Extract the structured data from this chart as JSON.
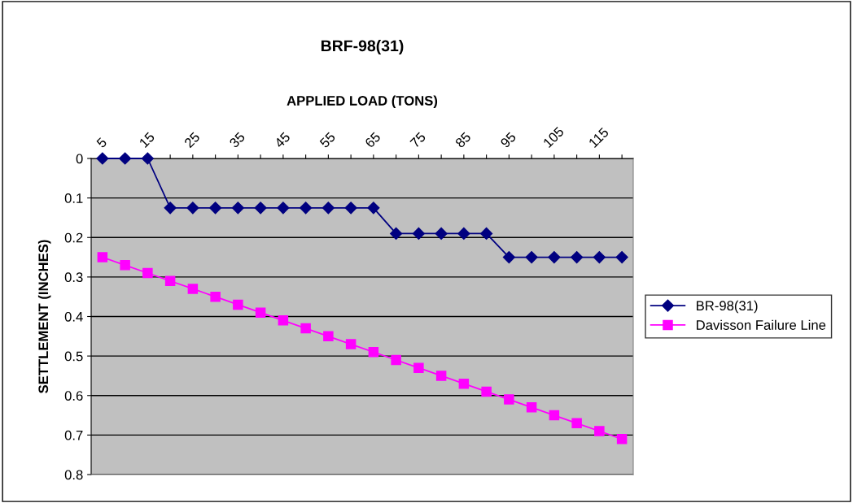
{
  "chart_data": {
    "type": "line",
    "title": "BRF-98(31)",
    "xlabel": "APPLIED LOAD (TONS)",
    "ylabel": "SETTLEMENT (INCHES)",
    "categories": [
      "5",
      null,
      "15",
      null,
      "25",
      null,
      "35",
      null,
      "45",
      null,
      "55",
      null,
      "65",
      null,
      "75",
      null,
      "85",
      null,
      "95",
      null,
      "105",
      null,
      "115",
      null
    ],
    "series": [
      {
        "name": "BR-98(31)",
        "color": "#000080",
        "marker": "diamond",
        "values": [
          0,
          0,
          0,
          0.125,
          0.125,
          0.125,
          0.125,
          0.125,
          0.125,
          0.125,
          0.125,
          0.125,
          0.125,
          0.19,
          0.19,
          0.19,
          0.19,
          0.19,
          0.25,
          0.25,
          0.25,
          0.25,
          0.25,
          0.25
        ]
      },
      {
        "name": "Davisson Failure Line",
        "color": "#ff00ff",
        "marker": "square",
        "values": [
          0.25,
          0.27,
          0.29,
          0.31,
          0.33,
          0.35,
          0.37,
          0.39,
          0.41,
          0.43,
          0.45,
          0.47,
          0.49,
          0.51,
          0.53,
          0.55,
          0.57,
          0.59,
          0.61,
          0.63,
          0.65,
          0.67,
          0.69,
          0.71
        ]
      }
    ],
    "ylim": [
      0.8,
      0
    ],
    "yticks": [
      0,
      0.1,
      0.2,
      0.3,
      0.4,
      0.5,
      0.6,
      0.7,
      0.8
    ],
    "grid": "y",
    "legend": "right",
    "line_style": "solid"
  }
}
